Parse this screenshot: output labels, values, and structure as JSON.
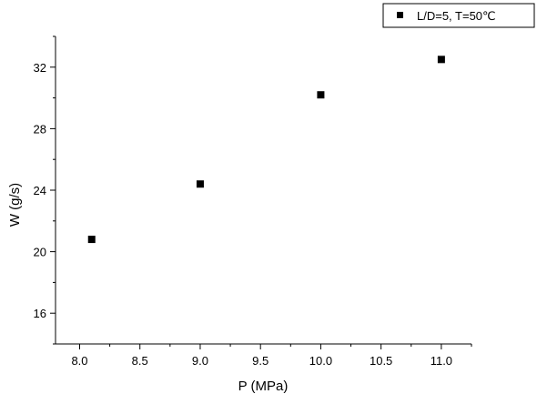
{
  "chart_data": {
    "type": "scatter",
    "xlabel": "P (MPa)",
    "ylabel": "W (g/s)",
    "xlim": [
      7.8,
      11.25
    ],
    "ylim": [
      14,
      34
    ],
    "x_ticks": [
      8.0,
      8.5,
      9.0,
      9.5,
      10.0,
      10.5,
      11.0
    ],
    "x_tick_labels": [
      "8.0",
      "8.5",
      "9.0",
      "9.5",
      "10.0",
      "10.5",
      "11.0"
    ],
    "y_ticks": [
      16,
      20,
      24,
      28,
      32
    ],
    "y_tick_labels": [
      "16",
      "20",
      "24",
      "28",
      "32"
    ],
    "grid": false,
    "legend_position": "top-right",
    "series": [
      {
        "name": "L/D=5, T=50℃",
        "marker": "square",
        "color": "#000000",
        "x": [
          8.1,
          9.0,
          10.0,
          11.0
        ],
        "y": [
          20.8,
          24.4,
          30.2,
          32.5
        ]
      }
    ]
  }
}
